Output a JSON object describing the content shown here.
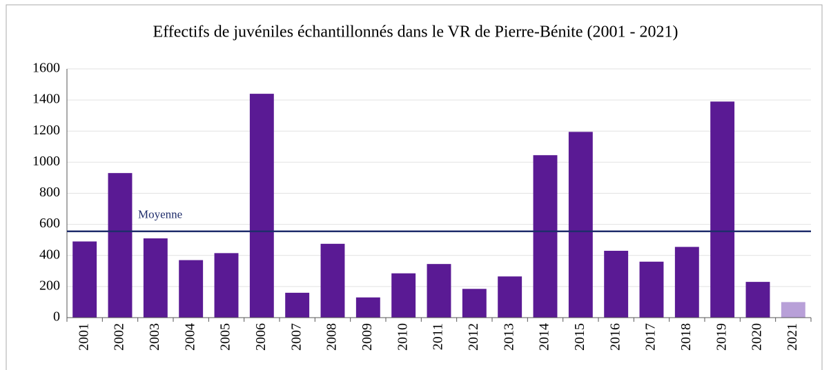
{
  "chart_data": {
    "type": "bar",
    "title": "Effectifs de juvéniles échantillonnés dans le VR de Pierre-Bénite (2001 - 2021)",
    "categories": [
      "2001",
      "2002",
      "2003",
      "2004",
      "2005",
      "2006",
      "2007",
      "2008",
      "2009",
      "2010",
      "2011",
      "2012",
      "2013",
      "2014",
      "2015",
      "2016",
      "2017",
      "2018",
      "2019",
      "2020",
      "2021"
    ],
    "values": [
      490,
      930,
      510,
      370,
      415,
      1440,
      160,
      475,
      130,
      285,
      345,
      185,
      265,
      1045,
      1195,
      430,
      360,
      455,
      1390,
      230,
      100
    ],
    "colors": [
      "#5a1a94",
      "#5a1a94",
      "#5a1a94",
      "#5a1a94",
      "#5a1a94",
      "#5a1a94",
      "#5a1a94",
      "#5a1a94",
      "#5a1a94",
      "#5a1a94",
      "#5a1a94",
      "#5a1a94",
      "#5a1a94",
      "#5a1a94",
      "#5a1a94",
      "#5a1a94",
      "#5a1a94",
      "#5a1a94",
      "#5a1a94",
      "#5a1a94",
      "#b8a0d8"
    ],
    "mean": {
      "label": "Moyenne",
      "value": 555,
      "color": "#1f2d6b"
    },
    "ylim": [
      0,
      1600
    ],
    "yticks": [
      0,
      200,
      400,
      600,
      800,
      1000,
      1200,
      1400,
      1600
    ],
    "grid": true
  }
}
